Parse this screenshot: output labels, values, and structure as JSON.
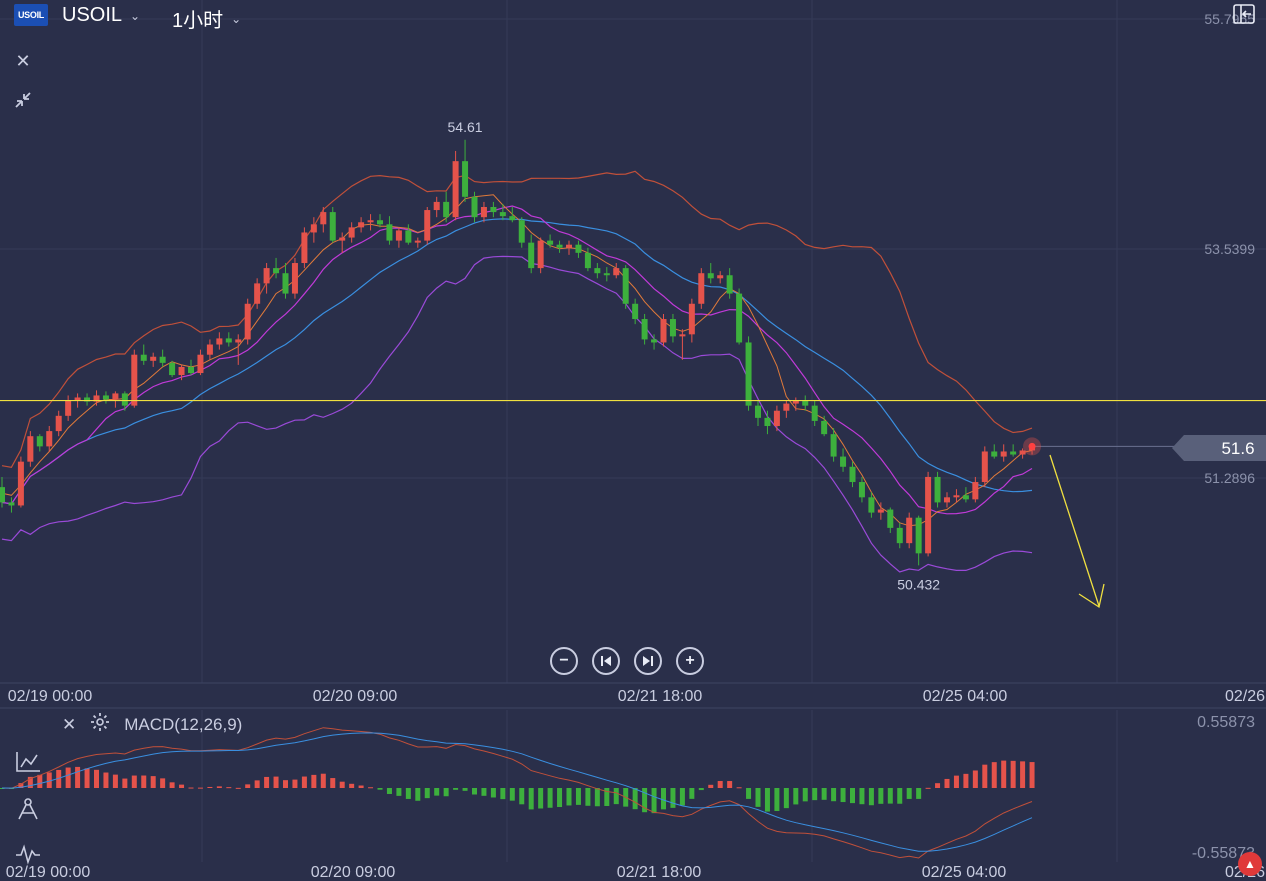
{
  "header": {
    "logo_text": "USOIL",
    "symbol": "USOIL",
    "timeframe": "1小时"
  },
  "macd_panel": {
    "label": "MACD(12,26,9)",
    "y_max": "0.55873",
    "y_min": "-0.55873"
  },
  "current_price": "51.6",
  "colors": {
    "background": "#2a2f4a",
    "up": "#e5534b",
    "down": "#3db03d",
    "ma5": "#e07a3a",
    "ma10": "#c03ad8",
    "ma20": "#3a8fe0",
    "boll_upper": "#c0503a",
    "boll_lower": "#9a4ad8",
    "horizontal_line": "#f0e040"
  },
  "icons": [
    "close-icon",
    "collapse-icon",
    "zoom-out-icon",
    "step-back-icon",
    "step-forward-icon",
    "zoom-in-icon",
    "settings-icon",
    "indicator-icon",
    "drawing-icon",
    "wave-icon",
    "sidebar-toggle-icon"
  ],
  "chart_data": {
    "type": "candlestick",
    "x_tick_labels": [
      "02/19 00:00",
      "02/20 09:00",
      "02/21 18:00",
      "02/25 04:00",
      "02/26"
    ],
    "macd_x_tick_labels": [
      "02/19 00:00",
      "02/20 09:00",
      "02/21 18:00",
      "02/25 04:00",
      "02/26"
    ],
    "y_tick_labels": [
      "55.7955",
      "53.5399",
      "51.2896"
    ],
    "y_axis_values": [
      55.7955,
      53.5399,
      51.2896
    ],
    "annotations": {
      "high": "54.61",
      "low": "50.432"
    },
    "horizontal_line_level": 52.05,
    "ohlc": [
      [
        51.2,
        51.3,
        51.0,
        51.05
      ],
      [
        51.05,
        51.1,
        50.95,
        51.02
      ],
      [
        51.02,
        51.5,
        51.0,
        51.45
      ],
      [
        51.45,
        51.75,
        51.4,
        51.7
      ],
      [
        51.7,
        51.72,
        51.55,
        51.6
      ],
      [
        51.6,
        51.8,
        51.55,
        51.75
      ],
      [
        51.75,
        51.95,
        51.7,
        51.9
      ],
      [
        51.9,
        52.1,
        51.85,
        52.05
      ],
      [
        52.05,
        52.12,
        51.98,
        52.08
      ],
      [
        52.08,
        52.12,
        52.0,
        52.04
      ],
      [
        52.04,
        52.15,
        52.0,
        52.1
      ],
      [
        52.1,
        52.14,
        52.02,
        52.06
      ],
      [
        52.06,
        52.14,
        51.98,
        52.12
      ],
      [
        52.12,
        52.14,
        51.95,
        52.0
      ],
      [
        52.0,
        52.55,
        51.98,
        52.5
      ],
      [
        52.5,
        52.6,
        52.4,
        52.44
      ],
      [
        52.44,
        52.52,
        52.38,
        52.48
      ],
      [
        52.48,
        52.55,
        52.38,
        52.42
      ],
      [
        52.42,
        52.44,
        52.28,
        52.3
      ],
      [
        52.3,
        52.4,
        52.25,
        52.38
      ],
      [
        52.38,
        52.45,
        52.3,
        52.32
      ],
      [
        52.32,
        52.55,
        52.3,
        52.5
      ],
      [
        52.5,
        52.65,
        52.45,
        52.6
      ],
      [
        52.6,
        52.72,
        52.55,
        52.66
      ],
      [
        52.66,
        52.72,
        52.58,
        52.62
      ],
      [
        52.62,
        52.7,
        52.4,
        52.65
      ],
      [
        52.65,
        53.05,
        52.6,
        53.0
      ],
      [
        53.0,
        53.25,
        52.95,
        53.2
      ],
      [
        53.2,
        53.4,
        53.1,
        53.35
      ],
      [
        53.35,
        53.45,
        53.25,
        53.3
      ],
      [
        53.3,
        53.4,
        53.05,
        53.1
      ],
      [
        53.1,
        53.45,
        53.05,
        53.4
      ],
      [
        53.4,
        53.75,
        53.35,
        53.7
      ],
      [
        53.7,
        53.85,
        53.6,
        53.78
      ],
      [
        53.78,
        53.95,
        53.7,
        53.9
      ],
      [
        53.9,
        53.95,
        53.6,
        53.62
      ],
      [
        53.62,
        53.7,
        53.5,
        53.65
      ],
      [
        53.65,
        53.8,
        53.6,
        53.75
      ],
      [
        53.75,
        53.85,
        53.7,
        53.8
      ],
      [
        53.8,
        53.88,
        53.72,
        53.82
      ],
      [
        53.82,
        53.88,
        53.75,
        53.78
      ],
      [
        53.78,
        53.86,
        53.58,
        53.62
      ],
      [
        53.62,
        53.75,
        53.55,
        53.72
      ],
      [
        53.72,
        53.78,
        53.58,
        53.6
      ],
      [
        53.6,
        53.65,
        53.55,
        53.62
      ],
      [
        53.62,
        53.95,
        53.58,
        53.92
      ],
      [
        53.92,
        54.05,
        53.85,
        54.0
      ],
      [
        54.0,
        54.1,
        53.8,
        53.85
      ],
      [
        53.85,
        54.5,
        53.82,
        54.4
      ],
      [
        54.4,
        54.61,
        54.0,
        54.05
      ],
      [
        54.05,
        54.1,
        53.8,
        53.85
      ],
      [
        53.85,
        54.0,
        53.8,
        53.95
      ],
      [
        53.95,
        54.0,
        53.85,
        53.9
      ],
      [
        53.9,
        53.98,
        53.82,
        53.86
      ],
      [
        53.86,
        53.95,
        53.8,
        53.82
      ],
      [
        53.82,
        53.85,
        53.55,
        53.6
      ],
      [
        53.6,
        53.68,
        53.3,
        53.35
      ],
      [
        53.35,
        53.65,
        53.3,
        53.62
      ],
      [
        53.62,
        53.68,
        53.55,
        53.58
      ],
      [
        53.58,
        53.62,
        53.5,
        53.55
      ],
      [
        53.55,
        53.62,
        53.48,
        53.58
      ],
      [
        53.58,
        53.62,
        53.45,
        53.5
      ],
      [
        53.5,
        53.55,
        53.32,
        53.35
      ],
      [
        53.35,
        53.4,
        53.25,
        53.3
      ],
      [
        53.3,
        53.36,
        53.22,
        53.28
      ],
      [
        53.28,
        53.4,
        53.25,
        53.35
      ],
      [
        53.35,
        53.38,
        52.95,
        53.0
      ],
      [
        53.0,
        53.05,
        52.8,
        52.85
      ],
      [
        52.85,
        52.9,
        52.6,
        52.65
      ],
      [
        52.65,
        52.7,
        52.55,
        52.62
      ],
      [
        52.62,
        52.9,
        52.58,
        52.85
      ],
      [
        52.85,
        52.9,
        52.62,
        52.68
      ],
      [
        52.68,
        52.75,
        52.45,
        52.7
      ],
      [
        52.7,
        53.05,
        52.62,
        53.0
      ],
      [
        53.0,
        53.35,
        52.95,
        53.3
      ],
      [
        53.3,
        53.4,
        53.2,
        53.25
      ],
      [
        53.25,
        53.32,
        53.2,
        53.28
      ],
      [
        53.28,
        53.35,
        53.05,
        53.1
      ],
      [
        53.1,
        53.15,
        52.6,
        52.62
      ],
      [
        52.62,
        52.68,
        51.95,
        52.0
      ],
      [
        52.0,
        52.05,
        51.8,
        51.88
      ],
      [
        51.88,
        51.95,
        51.72,
        51.8
      ],
      [
        51.8,
        52.0,
        51.75,
        51.95
      ],
      [
        51.95,
        52.05,
        51.88,
        52.02
      ],
      [
        52.02,
        52.08,
        51.95,
        52.05
      ],
      [
        52.05,
        52.1,
        51.95,
        52.0
      ],
      [
        52.0,
        52.05,
        51.8,
        51.85
      ],
      [
        51.85,
        51.9,
        51.7,
        51.72
      ],
      [
        51.72,
        51.78,
        51.45,
        51.5
      ],
      [
        51.5,
        51.58,
        51.35,
        51.4
      ],
      [
        51.4,
        51.45,
        51.2,
        51.25
      ],
      [
        51.25,
        51.3,
        51.05,
        51.1
      ],
      [
        51.1,
        51.15,
        50.9,
        50.95
      ],
      [
        50.95,
        51.05,
        50.88,
        50.98
      ],
      [
        50.98,
        51.0,
        50.75,
        50.8
      ],
      [
        50.8,
        50.85,
        50.6,
        50.65
      ],
      [
        50.65,
        50.95,
        50.6,
        50.9
      ],
      [
        50.9,
        50.92,
        50.432,
        50.55
      ],
      [
        50.55,
        51.35,
        50.52,
        51.3
      ],
      [
        51.3,
        51.35,
        51.0,
        51.05
      ],
      [
        51.05,
        51.15,
        51.0,
        51.1
      ],
      [
        51.1,
        51.18,
        51.05,
        51.12
      ],
      [
        51.12,
        51.2,
        51.05,
        51.08
      ],
      [
        51.08,
        51.3,
        51.05,
        51.25
      ],
      [
        51.25,
        51.6,
        51.2,
        51.55
      ],
      [
        51.55,
        51.62,
        51.48,
        51.5
      ],
      [
        51.5,
        51.62,
        51.45,
        51.55
      ],
      [
        51.55,
        51.62,
        51.5,
        51.52
      ],
      [
        51.52,
        51.58,
        51.48,
        51.56
      ],
      [
        51.56,
        51.62,
        51.52,
        51.6
      ]
    ],
    "ma5": [
      51.14,
      51.12,
      51.22,
      51.34,
      51.45,
      51.55,
      51.66,
      51.78,
      51.87,
      51.95,
      52.03,
      52.06,
      52.06,
      52.07,
      52.16,
      52.22,
      52.3,
      52.38,
      52.43,
      52.4,
      52.38,
      52.4,
      52.45,
      52.49,
      52.53,
      52.58,
      52.7,
      52.83,
      52.96,
      53.1,
      53.16,
      53.23,
      53.33,
      53.43,
      53.53,
      53.6,
      53.64,
      53.73,
      53.77,
      53.78,
      53.76,
      53.76,
      53.75,
      53.74,
      53.7,
      53.73,
      53.78,
      53.84,
      53.93,
      54.03,
      54.05,
      54.06,
      54.07,
      53.97,
      53.88,
      53.8,
      53.7,
      53.63,
      53.57,
      53.54,
      53.55,
      53.54,
      53.5,
      53.46,
      53.4,
      53.35,
      53.25,
      53.15,
      53.02,
      52.92,
      52.83,
      52.76,
      52.73,
      52.76,
      52.84,
      52.92,
      53.06,
      53.15,
      53.1,
      52.97,
      52.79,
      52.59,
      52.39,
      52.09,
      51.97,
      51.96,
      51.92,
      51.87,
      51.76,
      51.62,
      51.46,
      51.32,
      51.15,
      51.0,
      50.94,
      50.85,
      50.82,
      50.83,
      50.88,
      50.96,
      50.98,
      51.05,
      51.13,
      51.17,
      51.22,
      51.31,
      51.38,
      51.46,
      51.54,
      51.56
    ]
  }
}
